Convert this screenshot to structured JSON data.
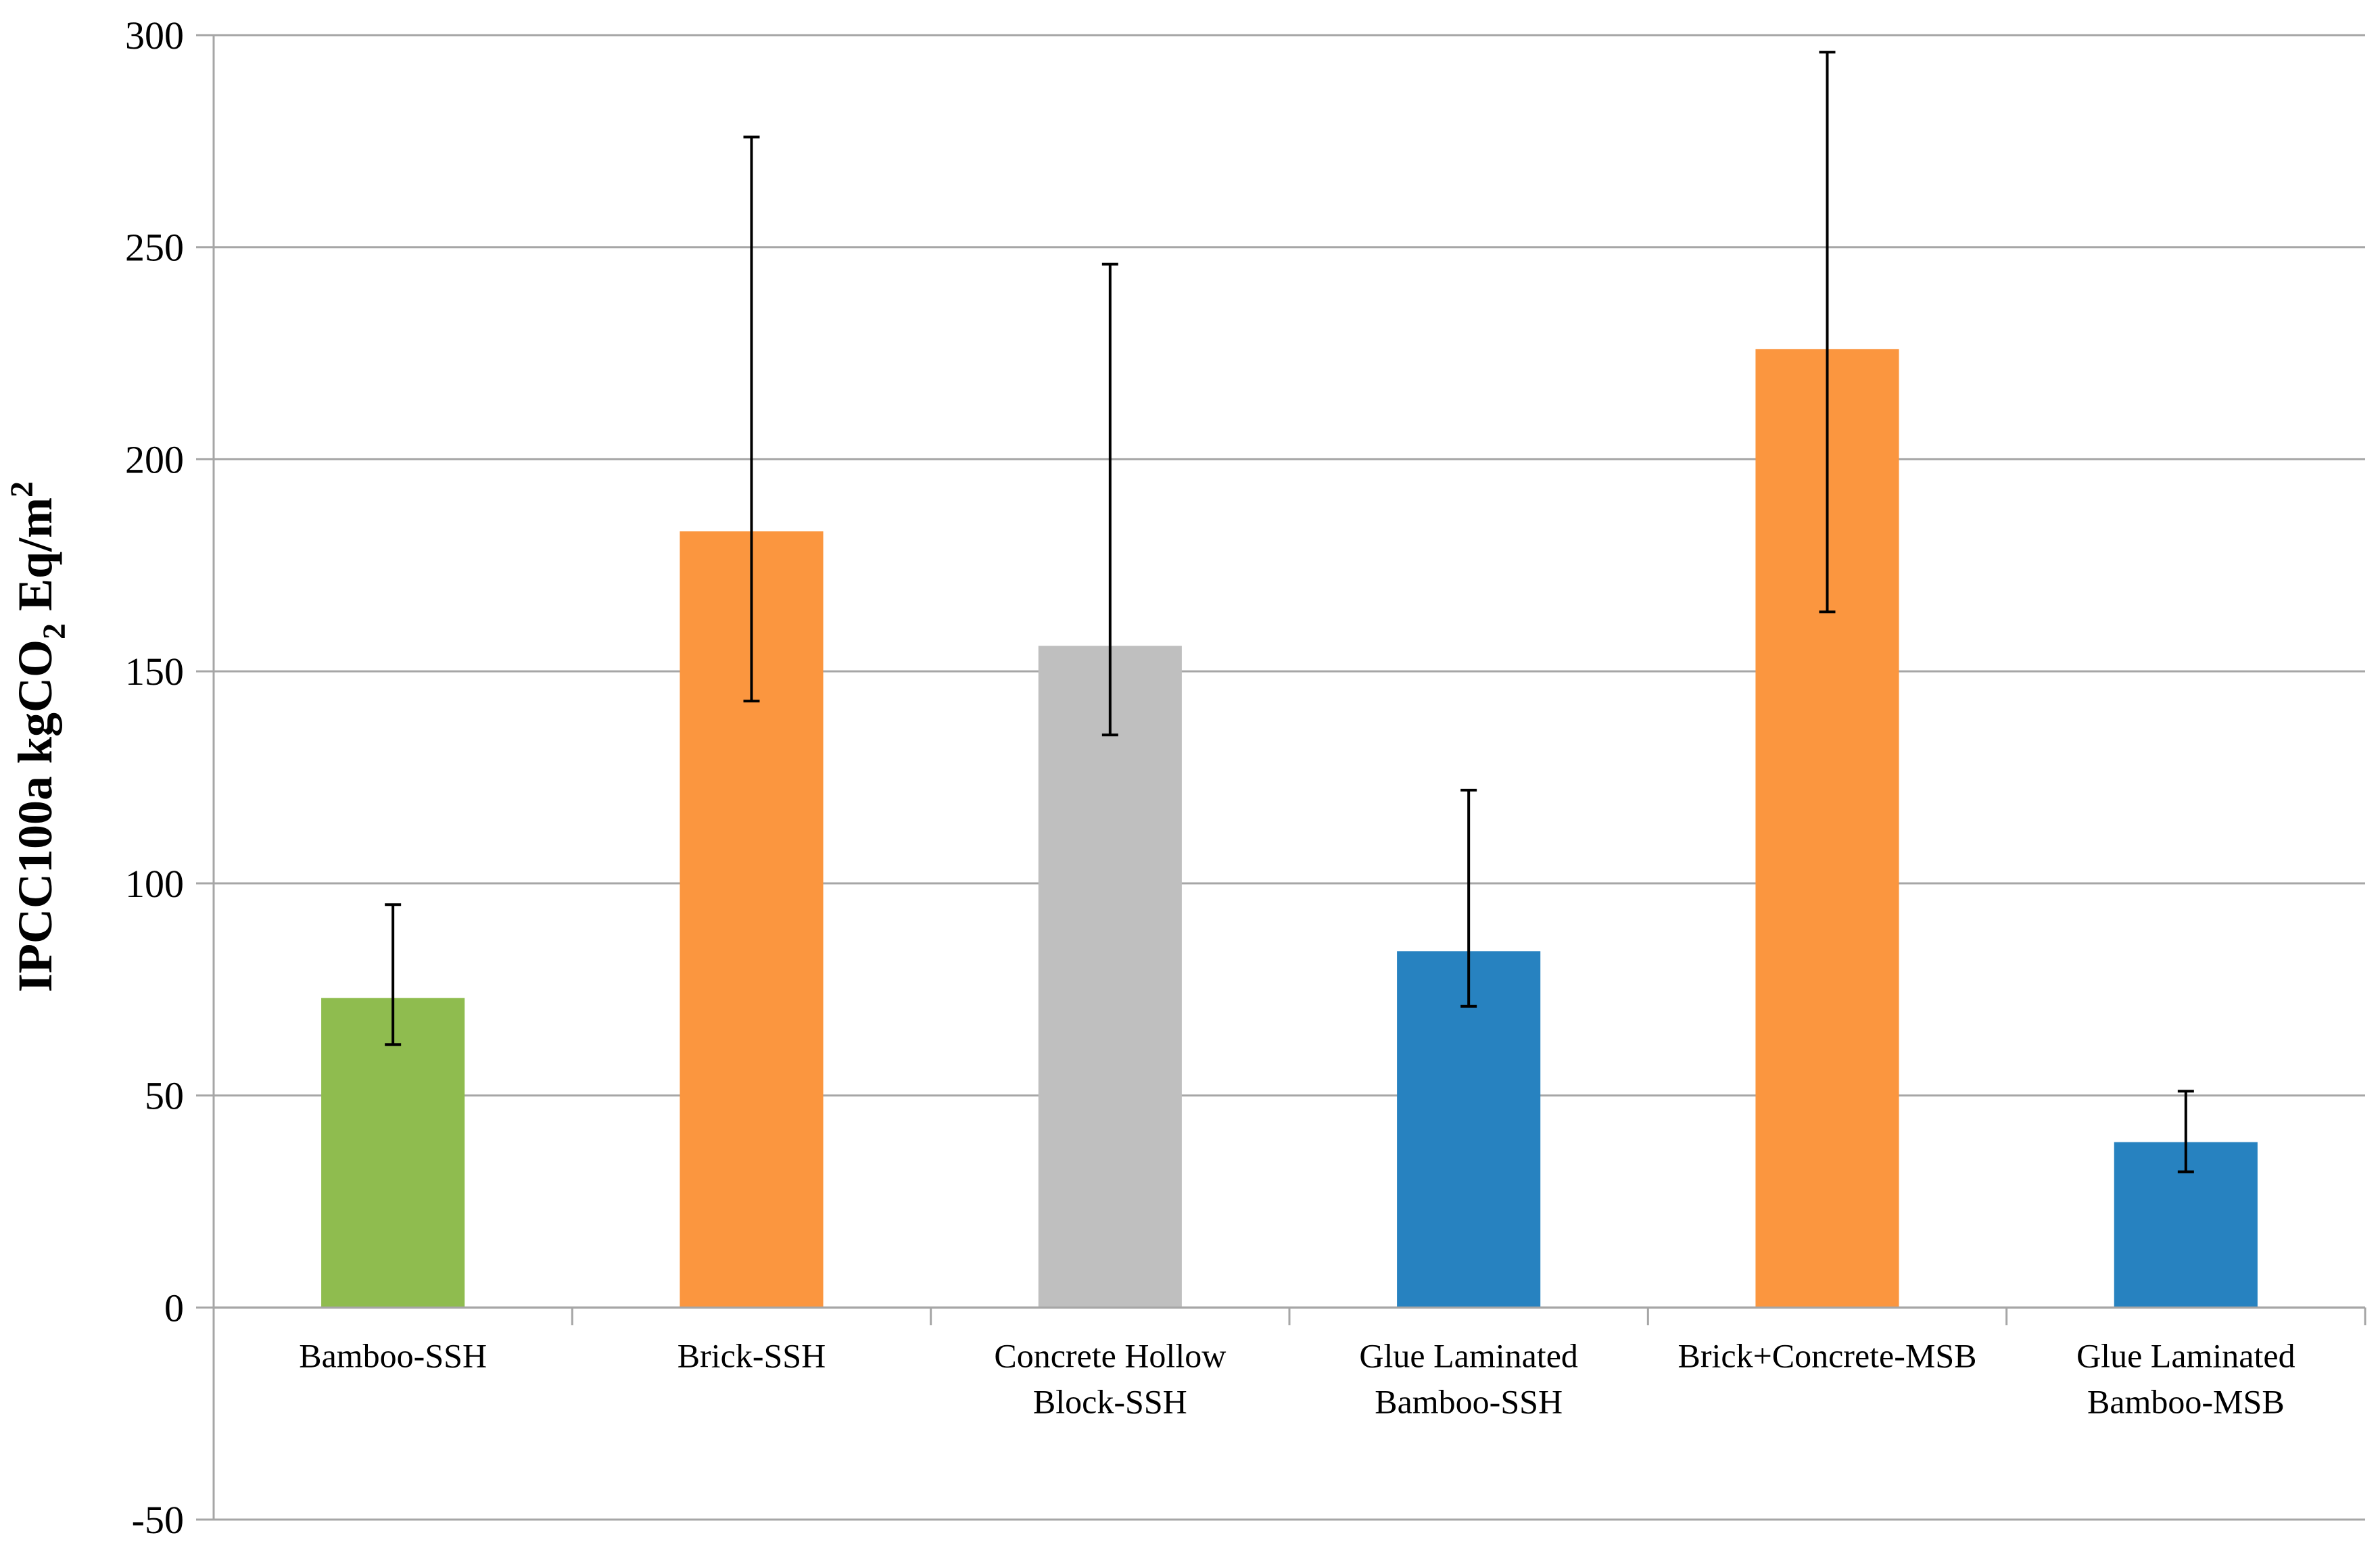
{
  "chart_data": {
    "type": "bar",
    "title": "",
    "xlabel": "",
    "ylabel": {
      "text": "IPCC100a kgCO2 Eq/m2",
      "prefix": "IPCC100a kgCO",
      "subscript": "2",
      "middle": " Eq/m",
      "superscript": "2"
    },
    "ylim": [
      -50,
      300
    ],
    "yticks": [
      -50,
      0,
      50,
      100,
      150,
      200,
      250,
      300
    ],
    "grid": true,
    "legend": "none",
    "categories": [
      [
        "Bamboo-SSH"
      ],
      [
        "Brick-SSH"
      ],
      [
        "Concrete Hollow",
        "Block-SSH"
      ],
      [
        "Glue Laminated",
        "Bamboo-SSH"
      ],
      [
        "Brick+Concrete-MSB"
      ],
      [
        "Glue Laminated",
        "Bamboo-MSB"
      ]
    ],
    "values": [
      73,
      183,
      156,
      84,
      226,
      39
    ],
    "error_low": [
      62,
      143,
      135,
      71,
      164,
      32
    ],
    "error_high": [
      95,
      276,
      246,
      122,
      296,
      51
    ],
    "colors": [
      "#8fbc4f",
      "#fb963f",
      "#bfbfbf",
      "#2782c0",
      "#fb963f",
      "#2782c0"
    ]
  }
}
